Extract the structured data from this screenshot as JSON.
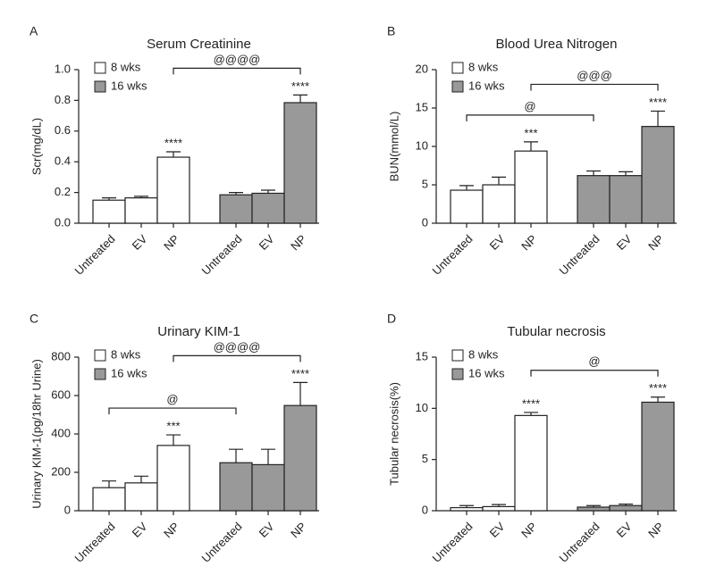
{
  "chart_data": [
    {
      "type": "bar",
      "panel": "A",
      "title": "Serum Creatinine",
      "ylabel": "Scr(mg/dL)",
      "categories": [
        "Untreated",
        "EV",
        "NP"
      ],
      "ylim": [
        0,
        1.0
      ],
      "yticks": [
        {
          "value": 0,
          "label": "0.0"
        },
        0.2,
        0.4,
        0.6,
        0.8,
        {
          "value": 1.0,
          "label": "1.0"
        }
      ],
      "series": [
        {
          "name": "8 wks",
          "color": "#ffffff",
          "values": [
            0.15,
            0.165,
            0.43
          ],
          "errors": [
            0.015,
            0.01,
            0.035
          ],
          "annotations": [
            null,
            null,
            "****"
          ]
        },
        {
          "name": "16 wks",
          "color": "#999999",
          "values": [
            0.185,
            0.195,
            0.785
          ],
          "errors": [
            0.015,
            0.02,
            0.05
          ],
          "annotations": [
            null,
            null,
            "****"
          ]
        }
      ],
      "brackets": [
        {
          "label": "@@@@",
          "from": {
            "series": "8 wks",
            "category": "NP"
          },
          "to": {
            "series": "16 wks",
            "category": "NP"
          }
        }
      ]
    },
    {
      "type": "bar",
      "panel": "B",
      "title": "Blood Urea Nitrogen",
      "ylabel": "BUN(mmol/L)",
      "categories": [
        "Untreated",
        "EV",
        "NP"
      ],
      "ylim": [
        0,
        20
      ],
      "yticks": [
        0,
        5,
        10,
        15,
        20
      ],
      "series": [
        {
          "name": "8 wks",
          "color": "#ffffff",
          "values": [
            4.3,
            5.0,
            9.4
          ],
          "errors": [
            0.6,
            1.0,
            1.2
          ],
          "annotations": [
            null,
            null,
            "***"
          ]
        },
        {
          "name": "16 wks",
          "color": "#999999",
          "values": [
            6.2,
            6.2,
            12.6
          ],
          "errors": [
            0.6,
            0.5,
            2.0
          ],
          "annotations": [
            null,
            null,
            "****"
          ]
        }
      ],
      "brackets": [
        {
          "label": "@",
          "from": {
            "series": "8 wks",
            "category": "Untreated"
          },
          "to": {
            "series": "16 wks",
            "category": "Untreated"
          }
        },
        {
          "label": "@@@",
          "from": {
            "series": "8 wks",
            "category": "NP"
          },
          "to": {
            "series": "16 wks",
            "category": "NP"
          }
        }
      ]
    },
    {
      "type": "bar",
      "panel": "C",
      "title": "Urinary KIM-1",
      "ylabel": "Urinary KIM-1(pg/18hr Urine)",
      "categories": [
        "Untreated",
        "EV",
        "NP"
      ],
      "ylim": [
        0,
        800
      ],
      "yticks": [
        0,
        200,
        400,
        600,
        800
      ],
      "series": [
        {
          "name": "8 wks",
          "color": "#ffffff",
          "values": [
            120,
            145,
            340
          ],
          "errors": [
            35,
            35,
            55
          ],
          "annotations": [
            null,
            null,
            "***"
          ]
        },
        {
          "name": "16 wks",
          "color": "#999999",
          "values": [
            250,
            240,
            548
          ],
          "errors": [
            70,
            80,
            120
          ],
          "annotations": [
            null,
            null,
            "****"
          ]
        }
      ],
      "brackets": [
        {
          "label": "@",
          "from": {
            "series": "8 wks",
            "category": "Untreated"
          },
          "to": {
            "series": "16 wks",
            "category": "Untreated"
          }
        },
        {
          "label": "@@@@",
          "from": {
            "series": "8 wks",
            "category": "NP"
          },
          "to": {
            "series": "16 wks",
            "category": "NP"
          }
        }
      ]
    },
    {
      "type": "bar",
      "panel": "D",
      "title": "Tubular necrosis",
      "ylabel": "Tubular necrosis(%)",
      "categories": [
        "Untreated",
        "EV",
        "NP"
      ],
      "ylim": [
        0,
        15
      ],
      "yticks": [
        0,
        5,
        10,
        15
      ],
      "series": [
        {
          "name": "8 wks",
          "color": "#ffffff",
          "values": [
            0.3,
            0.4,
            9.3
          ],
          "errors": [
            0.2,
            0.2,
            0.3
          ],
          "annotations": [
            null,
            null,
            "****"
          ]
        },
        {
          "name": "16 wks",
          "color": "#999999",
          "values": [
            0.35,
            0.5,
            10.6
          ],
          "errors": [
            0.15,
            0.15,
            0.5
          ],
          "annotations": [
            null,
            null,
            "****"
          ]
        }
      ],
      "brackets": [
        {
          "label": "@",
          "from": {
            "series": "8 wks",
            "category": "NP"
          },
          "to": {
            "series": "16 wks",
            "category": "NP"
          }
        }
      ]
    }
  ]
}
